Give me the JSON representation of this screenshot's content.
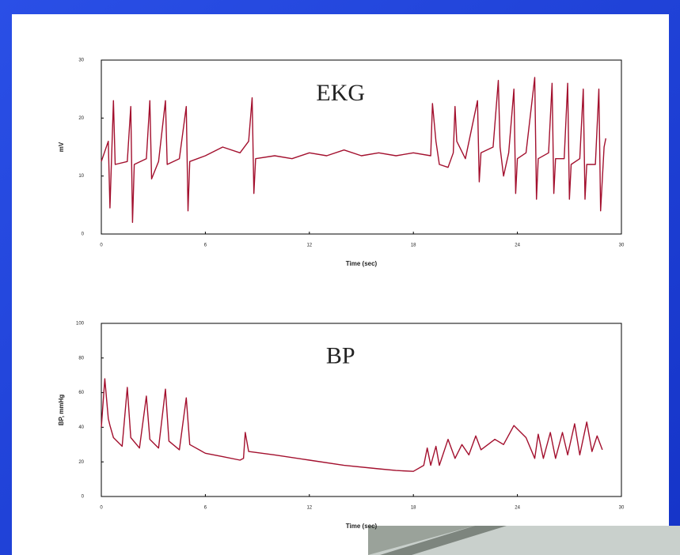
{
  "chart_data": [
    {
      "type": "line",
      "title": "EKG",
      "xlabel": "Time (sec)",
      "ylabel": "mV",
      "color": "#a3102e",
      "xlim": [
        0,
        30
      ],
      "xticks": [
        0,
        6,
        12,
        18,
        24,
        30
      ],
      "ylim": [
        0,
        30
      ],
      "yticks": [
        0,
        10,
        20,
        30
      ],
      "x": [
        0,
        0.4,
        0.5,
        0.7,
        0.8,
        1.5,
        1.7,
        1.8,
        1.9,
        2.6,
        2.8,
        2.9,
        3.3,
        3.7,
        3.8,
        4.5,
        4.9,
        5.0,
        5.1,
        6.0,
        7.0,
        8.0,
        8.5,
        8.7,
        8.8,
        8.9,
        10,
        11,
        12,
        13,
        14,
        15,
        16,
        17,
        18,
        19,
        19.1,
        19.3,
        19.5,
        20,
        20.3,
        20.4,
        20.5,
        21,
        21.7,
        21.8,
        21.9,
        22.6,
        22.9,
        23,
        23.2,
        23.5,
        23.8,
        23.9,
        24,
        24.5,
        25,
        25.1,
        25.2,
        25.8,
        26.0,
        26.1,
        26.2,
        26.7,
        26.9,
        27.0,
        27.1,
        27.6,
        27.8,
        27.9,
        28.0,
        28.5,
        28.7,
        28.8,
        29.0,
        29.1
      ],
      "values": [
        12.5,
        16,
        4.5,
        23,
        12,
        12.5,
        22,
        2,
        12,
        13,
        23,
        9.5,
        12.5,
        23,
        12,
        13,
        22,
        4,
        12.5,
        13.5,
        15,
        14,
        16,
        23.5,
        7,
        13,
        13.5,
        13,
        14,
        13.5,
        14.5,
        13.5,
        14,
        13.5,
        14,
        13.5,
        22.5,
        16,
        12,
        11.5,
        14,
        22,
        16,
        13,
        23,
        9,
        14,
        15,
        26.5,
        15,
        10,
        14,
        25,
        7,
        13,
        14,
        27,
        6,
        13,
        14,
        26,
        7,
        13,
        13,
        26,
        6,
        12,
        13,
        25,
        6,
        12,
        12,
        25,
        4,
        15,
        16.5
      ]
    },
    {
      "type": "line",
      "title": "BP",
      "xlabel": "Time (sec)",
      "ylabel": "BP, mmHg",
      "color": "#a3102e",
      "xlim": [
        0,
        30
      ],
      "xticks": [
        0,
        6,
        12,
        18,
        24,
        30
      ],
      "ylim": [
        0,
        100
      ],
      "yticks": [
        0,
        20,
        40,
        60,
        80,
        100
      ],
      "x": [
        0,
        0.2,
        0.4,
        0.5,
        0.7,
        1.2,
        1.5,
        1.7,
        2.2,
        2.6,
        2.8,
        3.3,
        3.7,
        3.9,
        4.5,
        4.9,
        5.1,
        6,
        7,
        8,
        8.2,
        8.3,
        8.5,
        10,
        12,
        14,
        16,
        17,
        18,
        18.6,
        18.8,
        19,
        19.3,
        19.5,
        20,
        20.4,
        20.8,
        21.2,
        21.6,
        21.9,
        22.3,
        22.7,
        23.2,
        23.8,
        24.5,
        25,
        25.2,
        25.5,
        25.9,
        26.2,
        26.6,
        26.9,
        27.3,
        27.6,
        28.0,
        28.3,
        28.6,
        28.9
      ],
      "values": [
        40,
        68,
        45,
        41,
        34,
        29,
        63,
        34,
        28,
        58,
        33,
        28,
        62,
        32,
        27,
        57,
        30,
        25,
        23,
        21,
        22,
        37,
        26,
        24,
        21,
        18,
        16,
        15,
        14.5,
        18,
        28,
        18,
        29,
        18,
        33,
        22,
        30,
        24,
        35,
        27,
        30,
        33,
        30,
        41,
        34,
        22,
        36,
        22,
        37,
        22,
        37,
        24,
        42,
        24,
        43,
        26,
        35,
        27
      ]
    }
  ]
}
